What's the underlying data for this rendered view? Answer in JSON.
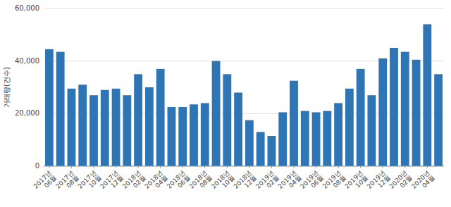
{
  "chart_data": {
    "type": "bar",
    "categories": [
      "2017년\n06월",
      null,
      "2017년\n08월",
      null,
      "2017년\n10월",
      null,
      "2017년\n12월",
      null,
      "2018년\n02월",
      null,
      "2018년\n04월",
      null,
      "2018년\n06월",
      null,
      "2018년\n08월",
      null,
      "2018년\n10월",
      null,
      "2018년\n12월",
      null,
      "2019년\n02월",
      null,
      "2019년\n04월",
      null,
      "2019년\n06월",
      null,
      "2019년\n08월",
      null,
      "2019년\n10월",
      null,
      "2019년\n12월",
      null,
      "2020년\n02월",
      null,
      "2020년\n04월",
      null
    ],
    "values": [
      44500,
      43500,
      29500,
      31000,
      27000,
      29000,
      29500,
      27000,
      35000,
      30000,
      37000,
      22500,
      22500,
      23500,
      24000,
      40000,
      35000,
      28000,
      17500,
      13000,
      11500,
      20500,
      32500,
      21000,
      20500,
      21000,
      24000,
      29500,
      37000,
      27000,
      41000,
      45000,
      43500,
      40500,
      54000,
      35000
    ],
    "color": "#2e75b6",
    "ylabel": "거래량(건수)",
    "ylim": [
      0,
      60000
    ],
    "yticks": [
      0,
      {
        "value": 20000,
        "label": "20,000"
      },
      {
        "value": 40000,
        "label": "40,000"
      },
      {
        "value": 60000,
        "label": "60,000"
      }
    ],
    "grid": true
  }
}
